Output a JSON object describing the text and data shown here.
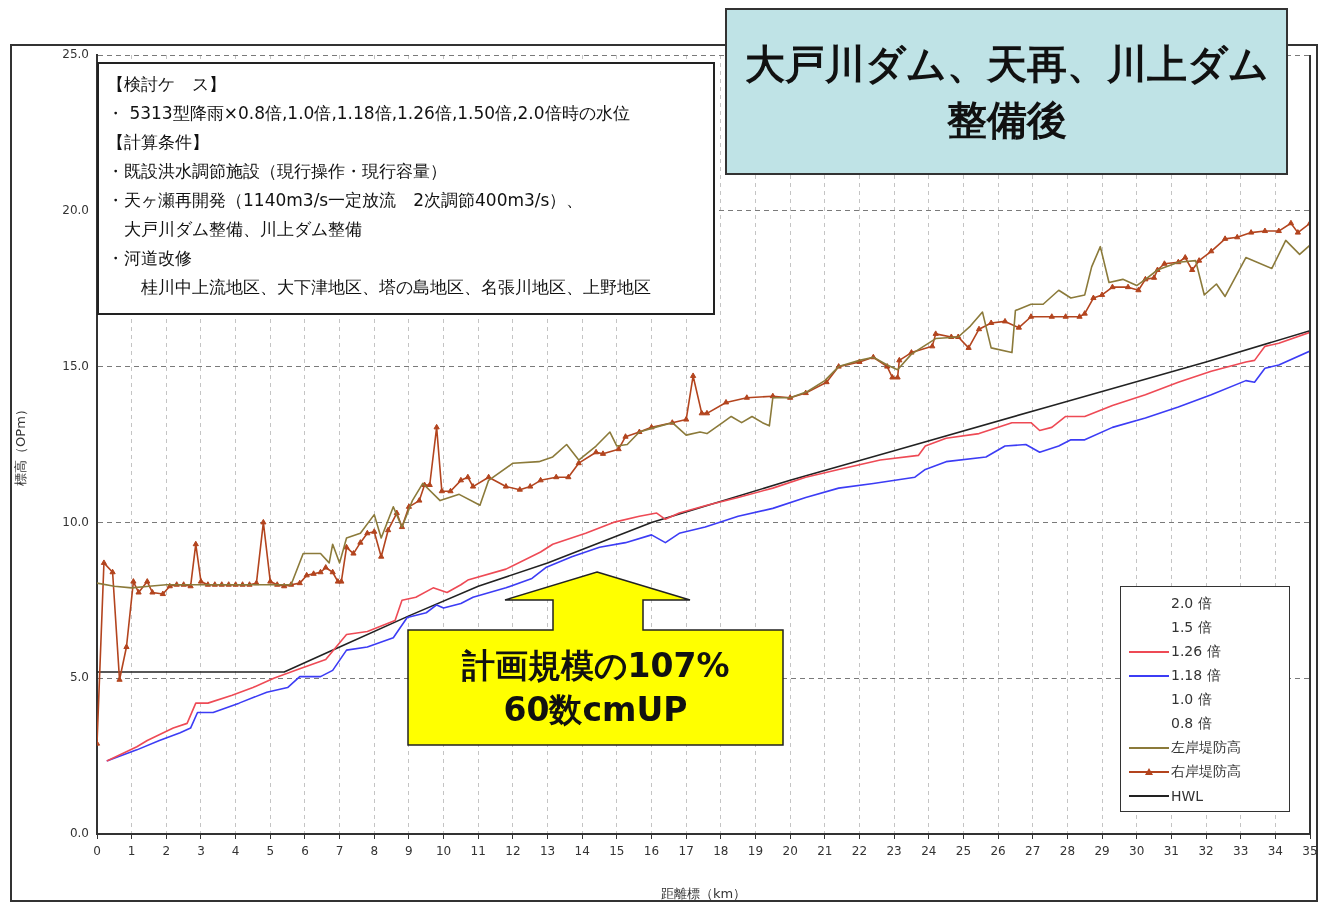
{
  "chart_data": {
    "type": "line",
    "title": "大戸川ダム、天再、川上ダム整備後",
    "xlabel": "距離標（km）",
    "ylabel": "標高（OPm）",
    "annotations": [
      "【検討ケ　ス】",
      "・ 5313型降雨×0.8倍,1.0倍,1.18倍,1.26倍,1.50倍,2.0倍時の水位",
      "【計算条件】",
      "・既設洪水調節施設（現行操作・現行容量）",
      "・天ヶ瀬再開発（1140m3/s一定放流　2次調節400m3/s）、",
      "　大戸川ダム整備、川上ダム整備",
      "・河道改修",
      "　　桂川中上流地区、大下津地区、塔の島地区、名張川地区、上野地区",
      "計画規模の107%\n60数cmUP"
    ],
    "xlim": [
      0,
      35
    ],
    "ylim": [
      0,
      25
    ],
    "xticks": [
      0,
      1,
      2,
      3,
      4,
      5,
      6,
      7,
      8,
      9,
      10,
      11,
      12,
      13,
      14,
      15,
      16,
      17,
      18,
      19,
      20,
      21,
      22,
      23,
      24,
      25,
      26,
      27,
      28,
      29,
      30,
      31,
      32,
      33,
      34,
      35
    ],
    "yticks": [
      {
        "value": 0,
        "label": "0.0"
      },
      {
        "value": 5,
        "label": "5.0"
      },
      {
        "value": 10,
        "label": "10.0"
      },
      {
        "value": 15,
        "label": "15.0"
      },
      {
        "value": 20,
        "label": "20.0"
      },
      {
        "value": 25,
        "label": "25.0"
      }
    ],
    "grid": true,
    "legend": "bottom right",
    "series": [
      {
        "name": "2.0 倍"
      },
      {
        "name": "1.5 倍"
      },
      {
        "name": "1.26 倍",
        "color": "#ee4a55",
        "x": [
          0.3,
          1.15,
          1.45,
          2.2,
          2.6,
          2.85,
          3.2,
          3.9,
          4.5,
          5.1,
          5.85,
          6.6,
          7.2,
          7.8,
          8.6,
          8.8,
          9.2,
          9.7,
          10.1,
          10.5,
          10.7,
          11.8,
          12.8,
          13.15,
          14.1,
          14.9,
          15.65,
          16.15,
          16.4,
          16.8,
          17.6,
          18.5,
          19.5,
          20.45,
          21.4,
          22.6,
          23.7,
          23.9,
          24.5,
          25.45,
          26.4,
          26.95,
          27.2,
          27.55,
          27.95,
          28.5,
          29.3,
          30.25,
          31.2,
          32.15,
          33.15,
          33.4,
          33.7,
          34.1,
          35.0
        ],
        "values": [
          2.35,
          2.8,
          3.0,
          3.4,
          3.55,
          4.2,
          4.2,
          4.45,
          4.7,
          5.0,
          5.3,
          5.6,
          6.4,
          6.5,
          6.85,
          7.5,
          7.6,
          7.9,
          7.75,
          8.0,
          8.15,
          8.5,
          9.05,
          9.3,
          9.65,
          10.0,
          10.2,
          10.3,
          10.1,
          10.3,
          10.55,
          10.8,
          11.1,
          11.45,
          11.7,
          12.0,
          12.15,
          12.45,
          12.7,
          12.85,
          13.2,
          13.2,
          12.95,
          13.05,
          13.4,
          13.4,
          13.75,
          14.1,
          14.5,
          14.85,
          15.15,
          15.2,
          15.65,
          15.75,
          16.1
        ]
      },
      {
        "name": "1.18 倍",
        "color": "#3c3cf5",
        "x": [
          0.3,
          1.15,
          1.8,
          2.4,
          2.7,
          2.9,
          3.35,
          4.1,
          4.9,
          5.5,
          5.85,
          6.45,
          6.8,
          7.2,
          7.8,
          8.55,
          8.95,
          9.5,
          9.8,
          10.0,
          10.5,
          10.85,
          11.8,
          12.55,
          12.95,
          13.7,
          14.5,
          15.25,
          16.0,
          16.4,
          16.8,
          17.55,
          18.5,
          19.5,
          20.45,
          21.4,
          22.4,
          23.6,
          23.9,
          24.5,
          25.65,
          26.2,
          26.8,
          27.2,
          27.75,
          28.1,
          28.5,
          29.3,
          30.25,
          31.2,
          32.15,
          33.15,
          33.4,
          33.7,
          34.1,
          35.0
        ],
        "values": [
          2.35,
          2.7,
          3.0,
          3.25,
          3.4,
          3.9,
          3.9,
          4.2,
          4.55,
          4.7,
          5.05,
          5.05,
          5.25,
          5.9,
          6.0,
          6.3,
          6.95,
          7.1,
          7.35,
          7.25,
          7.4,
          7.6,
          7.9,
          8.2,
          8.55,
          8.9,
          9.2,
          9.35,
          9.6,
          9.35,
          9.65,
          9.85,
          10.2,
          10.45,
          10.8,
          11.1,
          11.25,
          11.45,
          11.7,
          11.95,
          12.1,
          12.45,
          12.5,
          12.25,
          12.45,
          12.65,
          12.65,
          13.05,
          13.35,
          13.7,
          14.1,
          14.55,
          14.5,
          14.95,
          15.05,
          15.5
        ]
      },
      {
        "name": "1.0 倍"
      },
      {
        "name": "0.8 倍"
      },
      {
        "name": "左岸堤防高",
        "color": "#8b7a3a",
        "x": [
          0,
          0.5,
          1.0,
          1.5,
          2.0,
          3.0,
          4.0,
          5.0,
          5.6,
          5.95,
          6.45,
          6.7,
          6.8,
          7.0,
          7.2,
          7.6,
          8.0,
          8.2,
          8.55,
          8.8,
          9.1,
          9.4,
          9.9,
          10.45,
          11.05,
          11.3,
          12.0,
          12.75,
          13.15,
          13.55,
          13.9,
          14.4,
          14.8,
          15.0,
          15.3,
          15.65,
          16.1,
          16.6,
          17.0,
          17.4,
          17.6,
          18.05,
          18.3,
          18.6,
          18.9,
          19.2,
          19.4,
          19.5,
          20.0,
          20.5,
          21.0,
          21.4,
          22.0,
          22.4,
          22.8,
          23.1,
          23.5,
          24.2,
          24.85,
          25.2,
          25.55,
          25.8,
          26.4,
          26.5,
          26.95,
          27.3,
          27.75,
          28.1,
          28.5,
          28.7,
          28.95,
          29.2,
          29.6,
          30.0,
          30.25,
          30.6,
          31.2,
          31.7,
          31.95,
          32.3,
          32.55,
          33.15,
          33.9,
          34.3,
          34.7,
          35.0
        ],
        "values": [
          8.05,
          7.95,
          7.9,
          7.95,
          8.0,
          8.0,
          8.0,
          8.0,
          8.0,
          9.0,
          9.0,
          8.7,
          9.3,
          8.7,
          9.5,
          9.65,
          10.25,
          9.5,
          10.5,
          9.85,
          10.7,
          11.25,
          10.7,
          10.9,
          10.55,
          11.35,
          11.9,
          11.95,
          12.1,
          12.5,
          12.0,
          12.45,
          12.9,
          12.45,
          12.5,
          12.9,
          13.05,
          13.2,
          12.8,
          12.9,
          12.85,
          13.2,
          13.4,
          13.2,
          13.4,
          13.2,
          13.1,
          14.0,
          14.0,
          14.2,
          14.55,
          15.0,
          15.2,
          15.3,
          15.05,
          14.9,
          15.4,
          15.9,
          15.95,
          16.3,
          16.75,
          15.6,
          15.45,
          16.8,
          17.0,
          17.0,
          17.45,
          17.2,
          17.3,
          18.2,
          18.85,
          17.7,
          17.8,
          17.6,
          17.8,
          18.1,
          18.35,
          18.4,
          17.3,
          17.65,
          17.25,
          18.5,
          18.15,
          19.05,
          18.6,
          18.9
        ]
      },
      {
        "name": "右岸堤防高",
        "color": "#b3441e",
        "marker": "triangle",
        "x": [
          0,
          0.2,
          0.45,
          0.65,
          0.85,
          1.05,
          1.2,
          1.45,
          1.6,
          1.9,
          2.1,
          2.3,
          2.5,
          2.7,
          2.85,
          3.0,
          3.2,
          3.4,
          3.6,
          3.8,
          4.0,
          4.2,
          4.4,
          4.6,
          4.8,
          5.0,
          5.2,
          5.4,
          5.6,
          5.85,
          6.05,
          6.25,
          6.45,
          6.6,
          6.8,
          6.95,
          7.05,
          7.2,
          7.4,
          7.6,
          7.8,
          8.0,
          8.2,
          8.4,
          8.65,
          8.8,
          9.0,
          9.3,
          9.45,
          9.6,
          9.8,
          9.95,
          10.2,
          10.5,
          10.7,
          10.85,
          11.3,
          11.8,
          12.2,
          12.5,
          12.8,
          13.25,
          13.6,
          13.9,
          14.4,
          14.6,
          15.05,
          15.25,
          15.65,
          16.0,
          16.6,
          17.0,
          17.2,
          17.45,
          17.6,
          18.15,
          18.75,
          19.5,
          20.0,
          20.45,
          21.05,
          21.4,
          22.0,
          22.4,
          22.8,
          22.95,
          23.1,
          23.15,
          23.5,
          24.1,
          24.2,
          24.65,
          24.85,
          25.15,
          25.45,
          25.8,
          26.2,
          26.6,
          26.95,
          27.55,
          27.95,
          28.35,
          28.5,
          28.75,
          29.0,
          29.3,
          29.75,
          30.05,
          30.25,
          30.5,
          30.6,
          30.8,
          31.2,
          31.4,
          31.6,
          31.8,
          32.15,
          32.55,
          32.9,
          33.3,
          33.7,
          34.1,
          34.45,
          34.65,
          35.0
        ],
        "values": [
          2.9,
          8.7,
          8.4,
          4.95,
          6.0,
          8.1,
          7.75,
          8.1,
          7.75,
          7.7,
          7.95,
          8.0,
          8.0,
          7.95,
          9.3,
          8.1,
          8.0,
          8.0,
          8.0,
          8.0,
          8.0,
          8.0,
          8.0,
          8.05,
          10.0,
          8.1,
          8.0,
          7.95,
          8.0,
          8.05,
          8.3,
          8.35,
          8.4,
          8.55,
          8.4,
          8.1,
          8.1,
          9.2,
          9.0,
          9.35,
          9.65,
          9.7,
          8.9,
          9.75,
          10.3,
          9.85,
          10.5,
          10.7,
          11.2,
          11.2,
          13.05,
          11.0,
          11.0,
          11.35,
          11.45,
          11.15,
          11.45,
          11.15,
          11.05,
          11.15,
          11.35,
          11.45,
          11.45,
          11.9,
          12.25,
          12.2,
          12.35,
          12.75,
          12.9,
          13.05,
          13.2,
          13.3,
          14.7,
          13.5,
          13.5,
          13.85,
          14.0,
          14.05,
          14.0,
          14.15,
          14.5,
          15.0,
          15.15,
          15.3,
          15.0,
          14.65,
          14.65,
          15.2,
          15.45,
          15.65,
          16.05,
          15.95,
          15.95,
          15.6,
          16.2,
          16.4,
          16.45,
          16.25,
          16.6,
          16.6,
          16.6,
          16.6,
          16.7,
          17.2,
          17.3,
          17.55,
          17.55,
          17.45,
          17.8,
          17.85,
          18.1,
          18.3,
          18.35,
          18.5,
          18.1,
          18.4,
          18.7,
          19.1,
          19.15,
          19.3,
          19.35,
          19.35,
          19.6,
          19.3,
          19.6
        ]
      },
      {
        "name": "HWL",
        "color": "#222222",
        "x": [
          0,
          5.4,
          7.0,
          9.0,
          11.0,
          13.0,
          16.0,
          20.0,
          23.0,
          27.5,
          32.0,
          35.0
        ],
        "values": [
          5.2,
          5.2,
          6.0,
          7.0,
          7.95,
          8.7,
          10.0,
          11.35,
          12.3,
          13.73,
          15.15,
          16.15
        ]
      }
    ]
  }
}
